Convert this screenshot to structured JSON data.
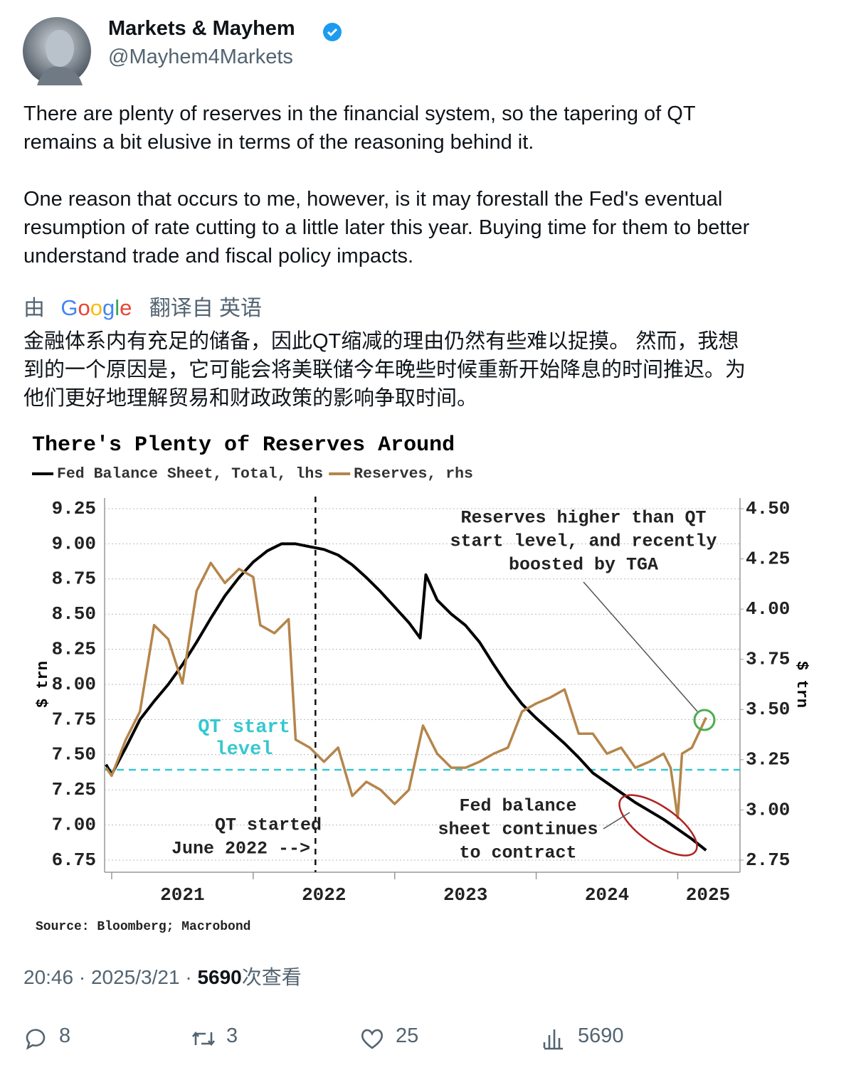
{
  "author": {
    "name": "Markets & Mayhem",
    "handle": "@Mayhem4Markets"
  },
  "tweet": {
    "paragraphs": [
      [
        "There are plenty of reserves in the financial system, so the tapering of QT",
        "remains a bit elusive in terms of the reasoning behind it."
      ],
      [
        "One reason that occurs to me, however, is it may forestall the Fed's eventual",
        "resumption of rate cutting to a little later this year. Buying time for them to better",
        "understand trade and fiscal policy impacts."
      ]
    ],
    "translation": {
      "prefix": "由",
      "logo": [
        "G",
        "o",
        "o",
        "g",
        "l",
        "e"
      ],
      "suffix": "翻译自 英语",
      "lines": [
        "金融体系内有充足的储备，因此QT缩减的理由仍然有些难以捉摸。 然而，我想",
        "到的一个原因是，它可能会将美联储今年晚些时候重新开始降息的时间推迟。为",
        "他们更好地理解贸易和财政政策的影响争取时间。"
      ]
    },
    "time": "20:46",
    "separator": "·",
    "date": "2025/3/21",
    "views": "5690",
    "views_label": "次查看"
  },
  "actions": {
    "replies": 8,
    "reposts": 3,
    "likes": 25,
    "views": 5690
  },
  "chart_data": {
    "type": "line",
    "title": "There's Plenty of Reserves Around",
    "ylabel": "$ trn",
    "y2label": "$ trn",
    "source": "Source: Bloomberg; Macrobond",
    "xlim": [
      2020.95,
      2025.44
    ],
    "xticks": [
      2021,
      2022,
      2023,
      2024,
      2025
    ],
    "ylim": [
      6.75,
      9.25
    ],
    "yticks": [
      {
        "value": 6.75,
        "label": "6.75"
      },
      {
        "value": 7,
        "label": "7.00"
      },
      {
        "value": 7.25,
        "label": "7.25"
      },
      {
        "value": 7.5,
        "label": "7.50"
      },
      {
        "value": 7.75,
        "label": "7.75"
      },
      {
        "value": 8,
        "label": "8.00"
      },
      {
        "value": 8.25,
        "label": "8.25"
      },
      {
        "value": 8.5,
        "label": "8.50"
      },
      {
        "value": 8.75,
        "label": "8.75"
      },
      {
        "value": 9,
        "label": "9.00"
      },
      {
        "value": 9.25,
        "label": "9.25"
      }
    ],
    "y2lim": [
      2.75,
      4.5
    ],
    "y2ticks": [
      {
        "value": 2.75,
        "label": "2.75"
      },
      {
        "value": 3,
        "label": "3.00"
      },
      {
        "value": 3.25,
        "label": "3.25"
      },
      {
        "value": 3.5,
        "label": "3.50"
      },
      {
        "value": 3.75,
        "label": "3.75"
      },
      {
        "value": 4,
        "label": "4.00"
      },
      {
        "value": 4.25,
        "label": "4.25"
      },
      {
        "value": 4.5,
        "label": "4.50"
      }
    ],
    "grid": true,
    "series": [
      {
        "name": "Fed Balance Sheet, Total, lhs",
        "color": "#000000",
        "x": [
          2020.96,
          2021.0,
          2021.1,
          2021.2,
          2021.3,
          2021.4,
          2021.5,
          2021.6,
          2021.7,
          2021.8,
          2021.9,
          2022.0,
          2022.1,
          2022.2,
          2022.3,
          2022.4,
          2022.5,
          2022.6,
          2022.7,
          2022.8,
          2022.9,
          2023.0,
          2023.1,
          2023.18,
          2023.22,
          2023.3,
          2023.4,
          2023.5,
          2023.6,
          2023.7,
          2023.8,
          2023.9,
          2024.0,
          2024.1,
          2024.2,
          2024.3,
          2024.4,
          2024.5,
          2024.6,
          2024.7,
          2024.8,
          2024.9,
          2025.0,
          2025.1,
          2025.2
        ],
        "values": [
          7.43,
          7.36,
          7.55,
          7.75,
          7.88,
          8.0,
          8.14,
          8.3,
          8.47,
          8.63,
          8.76,
          8.87,
          8.95,
          9.0,
          9.0,
          8.98,
          8.96,
          8.92,
          8.85,
          8.76,
          8.66,
          8.55,
          8.44,
          8.33,
          8.78,
          8.6,
          8.5,
          8.42,
          8.3,
          8.14,
          7.99,
          7.86,
          7.76,
          7.67,
          7.58,
          7.48,
          7.37,
          7.3,
          7.23,
          7.16,
          7.1,
          7.04,
          6.97,
          6.9,
          6.82
        ]
      },
      {
        "name": "Reserves, rhs",
        "color": "#b5854b",
        "axis": "y2",
        "x": [
          2020.96,
          2021.0,
          2021.1,
          2021.2,
          2021.3,
          2021.4,
          2021.5,
          2021.6,
          2021.7,
          2021.8,
          2021.9,
          2022.0,
          2022.05,
          2022.15,
          2022.25,
          2022.3,
          2022.4,
          2022.5,
          2022.6,
          2022.7,
          2022.8,
          2022.9,
          2023.0,
          2023.1,
          2023.2,
          2023.3,
          2023.4,
          2023.5,
          2023.6,
          2023.7,
          2023.8,
          2023.9,
          2024.0,
          2024.1,
          2024.2,
          2024.3,
          2024.4,
          2024.5,
          2024.6,
          2024.7,
          2024.8,
          2024.9,
          2024.95,
          2025.0,
          2025.03,
          2025.1,
          2025.2
        ],
        "values": [
          3.21,
          3.17,
          3.35,
          3.49,
          3.92,
          3.85,
          3.63,
          4.09,
          4.23,
          4.13,
          4.2,
          4.16,
          3.92,
          3.88,
          3.95,
          3.35,
          3.31,
          3.24,
          3.31,
          3.07,
          3.14,
          3.1,
          3.03,
          3.1,
          3.42,
          3.28,
          3.21,
          3.21,
          3.24,
          3.28,
          3.31,
          3.49,
          3.53,
          3.56,
          3.6,
          3.38,
          3.38,
          3.28,
          3.31,
          3.21,
          3.24,
          3.28,
          3.21,
          2.96,
          3.28,
          3.31,
          3.46
        ]
      }
    ],
    "qt_start_level": 3.2,
    "qt_start_date": 2022.44,
    "annotations": {
      "reserves": [
        "Reserves higher than QT",
        "start level, and recently",
        "boosted by TGA"
      ],
      "qt_level": [
        "QT start",
        "level"
      ],
      "qt_started": [
        "QT started",
        "June 2022 -->"
      ],
      "fed": [
        "Fed balance",
        "sheet continues",
        "to contract"
      ]
    }
  }
}
